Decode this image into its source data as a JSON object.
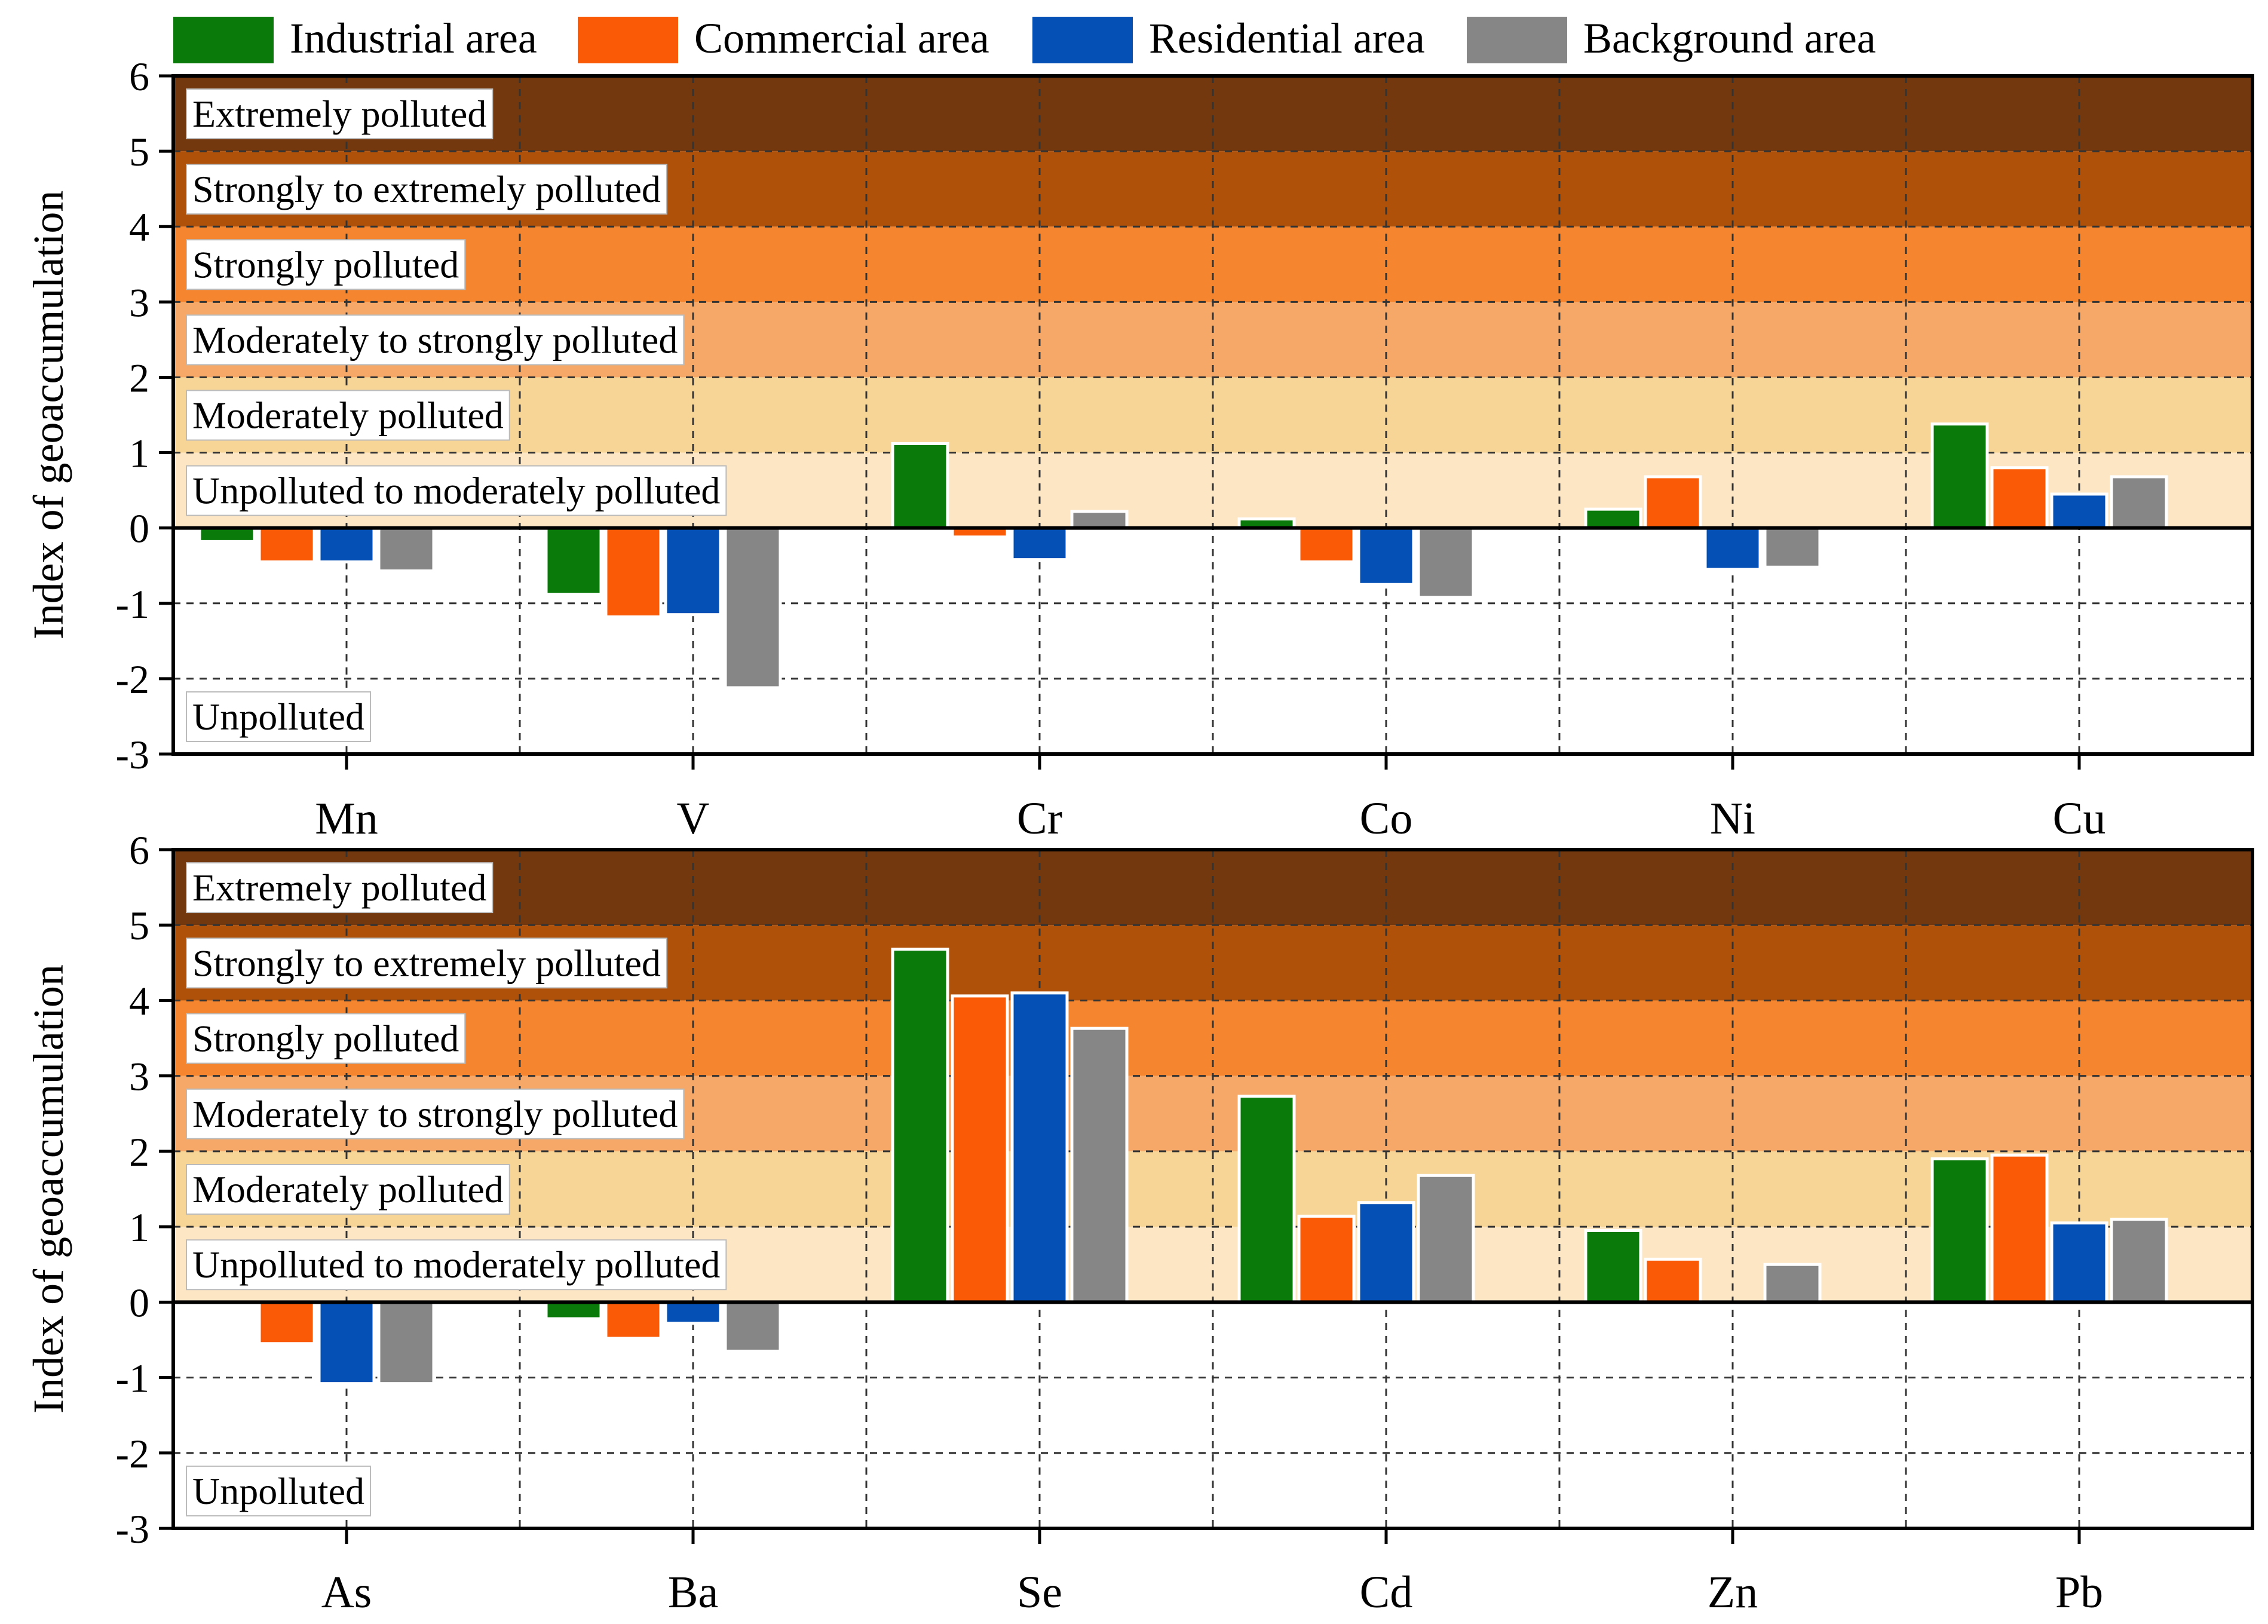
{
  "chart_data": [
    {
      "type": "bar",
      "panel": "top",
      "title": "",
      "xlabel": "",
      "ylabel": "Index of geoaccumulation",
      "ylim": [
        -3,
        6
      ],
      "yticks": [
        "6",
        "5",
        "4",
        "3",
        "2",
        "1",
        "0",
        "-1",
        "-2",
        "-3"
      ],
      "categories": [
        "Mn",
        "V",
        "Cr",
        "Co",
        "Ni",
        "Cu"
      ],
      "series": [
        {
          "name": "Industrial area",
          "values": [
            -0.18,
            -0.88,
            1.12,
            0.12,
            0.25,
            1.38
          ]
        },
        {
          "name": "Commercial area",
          "values": [
            -0.45,
            -1.18,
            -0.12,
            -0.45,
            0.68,
            0.8
          ]
        },
        {
          "name": "Residential area",
          "values": [
            -0.45,
            -1.15,
            -0.42,
            -0.75,
            -0.55,
            0.45
          ]
        },
        {
          "name": "Background area",
          "values": [
            -0.57,
            -2.12,
            0.22,
            -0.92,
            -0.52,
            0.68
          ]
        }
      ],
      "bands": [
        {
          "label": "Unpolluted",
          "from": -3,
          "to": 0
        },
        {
          "label": "Unpolluted to moderately polluted",
          "from": 0,
          "to": 1
        },
        {
          "label": "Moderately polluted",
          "from": 1,
          "to": 2
        },
        {
          "label": "Moderately to strongly polluted",
          "from": 2,
          "to": 3
        },
        {
          "label": "Strongly polluted",
          "from": 3,
          "to": 4
        },
        {
          "label": "Strongly to extremely polluted",
          "from": 4,
          "to": 5
        },
        {
          "label": "Extremely polluted",
          "from": 5,
          "to": 6
        }
      ],
      "grid": true
    },
    {
      "type": "bar",
      "panel": "bottom",
      "title": "",
      "xlabel": "",
      "ylabel": "Index of geoaccumulation",
      "ylim": [
        -3,
        6
      ],
      "yticks": [
        "6",
        "5",
        "4",
        "3",
        "2",
        "1",
        "0",
        "-1",
        "-2",
        "-3"
      ],
      "categories": [
        "As",
        "Ba",
        "Se",
        "Cd",
        "Zn",
        "Pb"
      ],
      "series": [
        {
          "name": "Industrial area",
          "values": [
            0,
            -0.22,
            4.68,
            2.73,
            0.95,
            1.9
          ]
        },
        {
          "name": "Commercial area",
          "values": [
            -0.55,
            -0.48,
            4.06,
            1.14,
            0.57,
            1.95
          ]
        },
        {
          "name": "Residential area",
          "values": [
            -1.08,
            -0.28,
            4.1,
            1.32,
            0,
            1.05
          ]
        },
        {
          "name": "Background area",
          "values": [
            -1.08,
            -0.65,
            3.63,
            1.68,
            0.5,
            1.1
          ]
        }
      ],
      "bands": [
        {
          "label": "Unpolluted",
          "from": -3,
          "to": 0
        },
        {
          "label": "Unpolluted to moderately polluted",
          "from": 0,
          "to": 1
        },
        {
          "label": "Moderately polluted",
          "from": 1,
          "to": 2
        },
        {
          "label": "Moderately to strongly polluted",
          "from": 2,
          "to": 3
        },
        {
          "label": "Strongly polluted",
          "from": 3,
          "to": 4
        },
        {
          "label": "Strongly to extremely polluted",
          "from": 4,
          "to": 5
        },
        {
          "label": "Extremely polluted",
          "from": 5,
          "to": 6
        }
      ],
      "grid": true
    }
  ],
  "legend": {
    "placement": "top",
    "items": [
      {
        "label": "Industrial area",
        "color": "#0a7a0a"
      },
      {
        "label": "Commercial area",
        "color": "#fa5a05"
      },
      {
        "label": "Residential area",
        "color": "#0550b4"
      },
      {
        "label": "Background area",
        "color": "#868686"
      }
    ]
  },
  "band_colors": [
    "#ffffff",
    "#fde6c4",
    "#f7d597",
    "#f5a868",
    "#f5862f",
    "#b05109",
    "#74380e"
  ],
  "axis_color": "#000000",
  "grid_color": "#333333",
  "bar_edge_color": "#ffffff"
}
